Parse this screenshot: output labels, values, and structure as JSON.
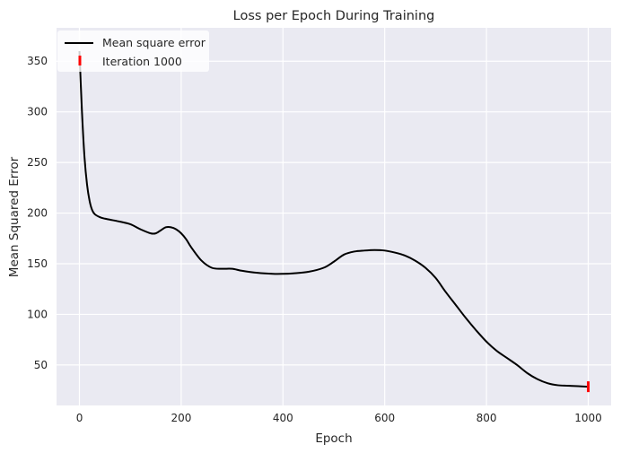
{
  "chart_data": {
    "type": "line",
    "title": "Loss per Epoch During Training",
    "xlabel": "Epoch",
    "ylabel": "Mean Squared Error",
    "xlim": [
      -45,
      1045
    ],
    "ylim": [
      10,
      383
    ],
    "xticks": [
      0,
      200,
      400,
      600,
      800,
      1000
    ],
    "yticks": [
      50,
      100,
      150,
      200,
      250,
      300,
      350
    ],
    "grid": true,
    "legend_position": "top-left",
    "colors": {
      "background": "#eaeaf2",
      "grid": "#ffffff",
      "line": "#000000",
      "marker": "#ff0000"
    },
    "series": [
      {
        "name": "Mean square error",
        "x": [
          0,
          5,
          10,
          15,
          20,
          25,
          30,
          40,
          50,
          60,
          80,
          100,
          120,
          140,
          150,
          160,
          170,
          180,
          190,
          200,
          210,
          220,
          240,
          260,
          280,
          300,
          320,
          350,
          380,
          400,
          420,
          450,
          480,
          500,
          520,
          540,
          560,
          580,
          600,
          620,
          640,
          660,
          680,
          700,
          720,
          740,
          760,
          780,
          800,
          820,
          840,
          860,
          880,
          900,
          920,
          940,
          960,
          980,
          1000
        ],
        "y": [
          360,
          300,
          255,
          228,
          212,
          203,
          199,
          196,
          194.5,
          193.5,
          191.5,
          189,
          184,
          180,
          180,
          183,
          186,
          186,
          184,
          180,
          174,
          166,
          153,
          146,
          145,
          145,
          143,
          141,
          140,
          140,
          140.5,
          142,
          146,
          152,
          159,
          162,
          163,
          163.5,
          163,
          161,
          158,
          153,
          146,
          136,
          122,
          109,
          96,
          84,
          73,
          64,
          57,
          50,
          42,
          36,
          32,
          30,
          29.5,
          29,
          28.5
        ]
      }
    ],
    "markers": [
      {
        "name": "Iteration 1000",
        "x": 1000,
        "y": 28.5
      }
    ]
  }
}
